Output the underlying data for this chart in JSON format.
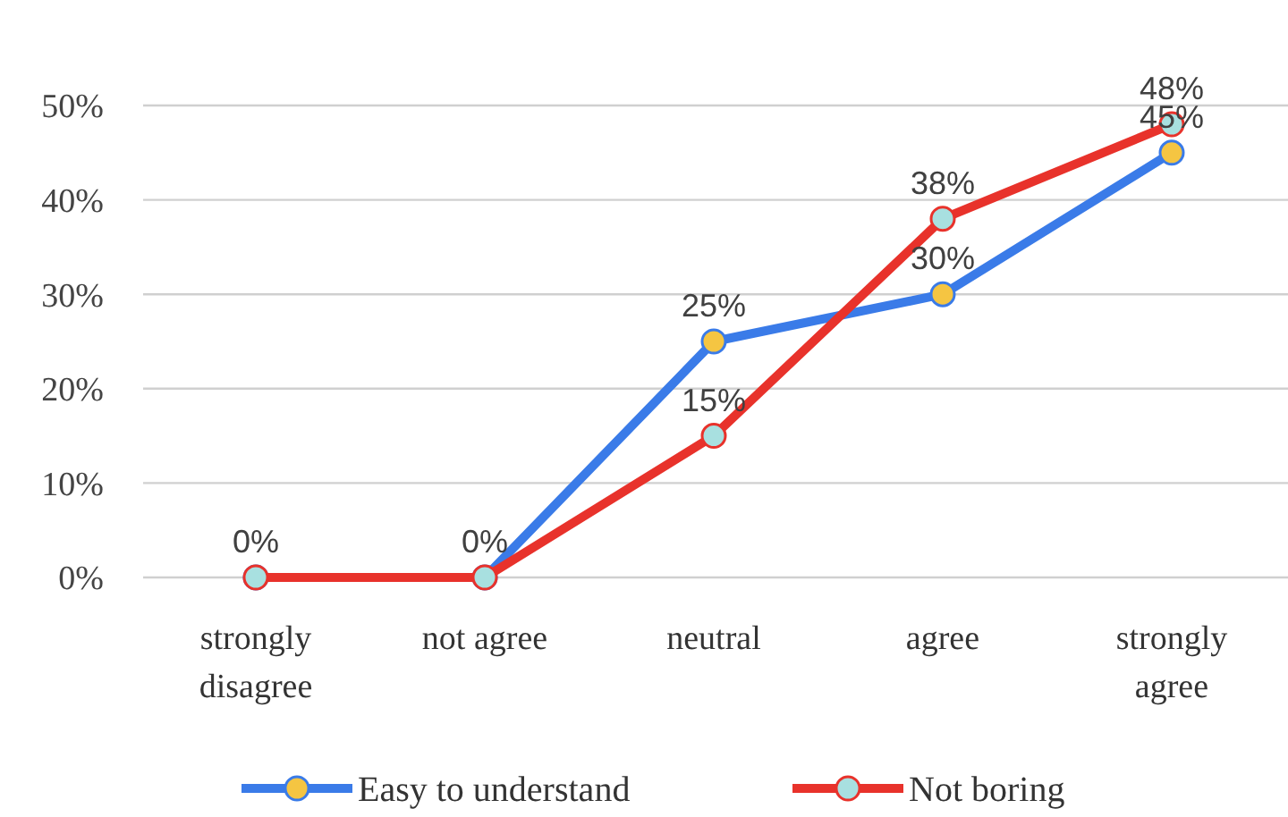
{
  "chart_data": {
    "type": "line",
    "categories": [
      "strongly disagree",
      "not agree",
      "neutral",
      "agree",
      "strongly agree"
    ],
    "series": [
      {
        "name": "Easy to understand",
        "color": "#3a7be8",
        "values": [
          0,
          0,
          25,
          30,
          45
        ],
        "value_labels": [
          null,
          null,
          "25%",
          "30%",
          "45%"
        ]
      },
      {
        "name": "Not boring",
        "color": "#e8322b",
        "values": [
          0,
          0,
          15,
          38,
          48
        ],
        "value_labels": [
          "0%",
          "0%",
          "15%",
          "38%",
          "48%"
        ]
      }
    ],
    "ylim": [
      0,
      50
    ],
    "yticks": [
      {
        "value": 0,
        "label": "0%"
      },
      {
        "value": 10,
        "label": "10%"
      },
      {
        "value": 20,
        "label": "20%"
      },
      {
        "value": 30,
        "label": "30%"
      },
      {
        "value": 40,
        "label": "40%"
      },
      {
        "value": 50,
        "label": "50%"
      }
    ],
    "grid": "y",
    "legend": "bottom",
    "marker": "circle"
  }
}
